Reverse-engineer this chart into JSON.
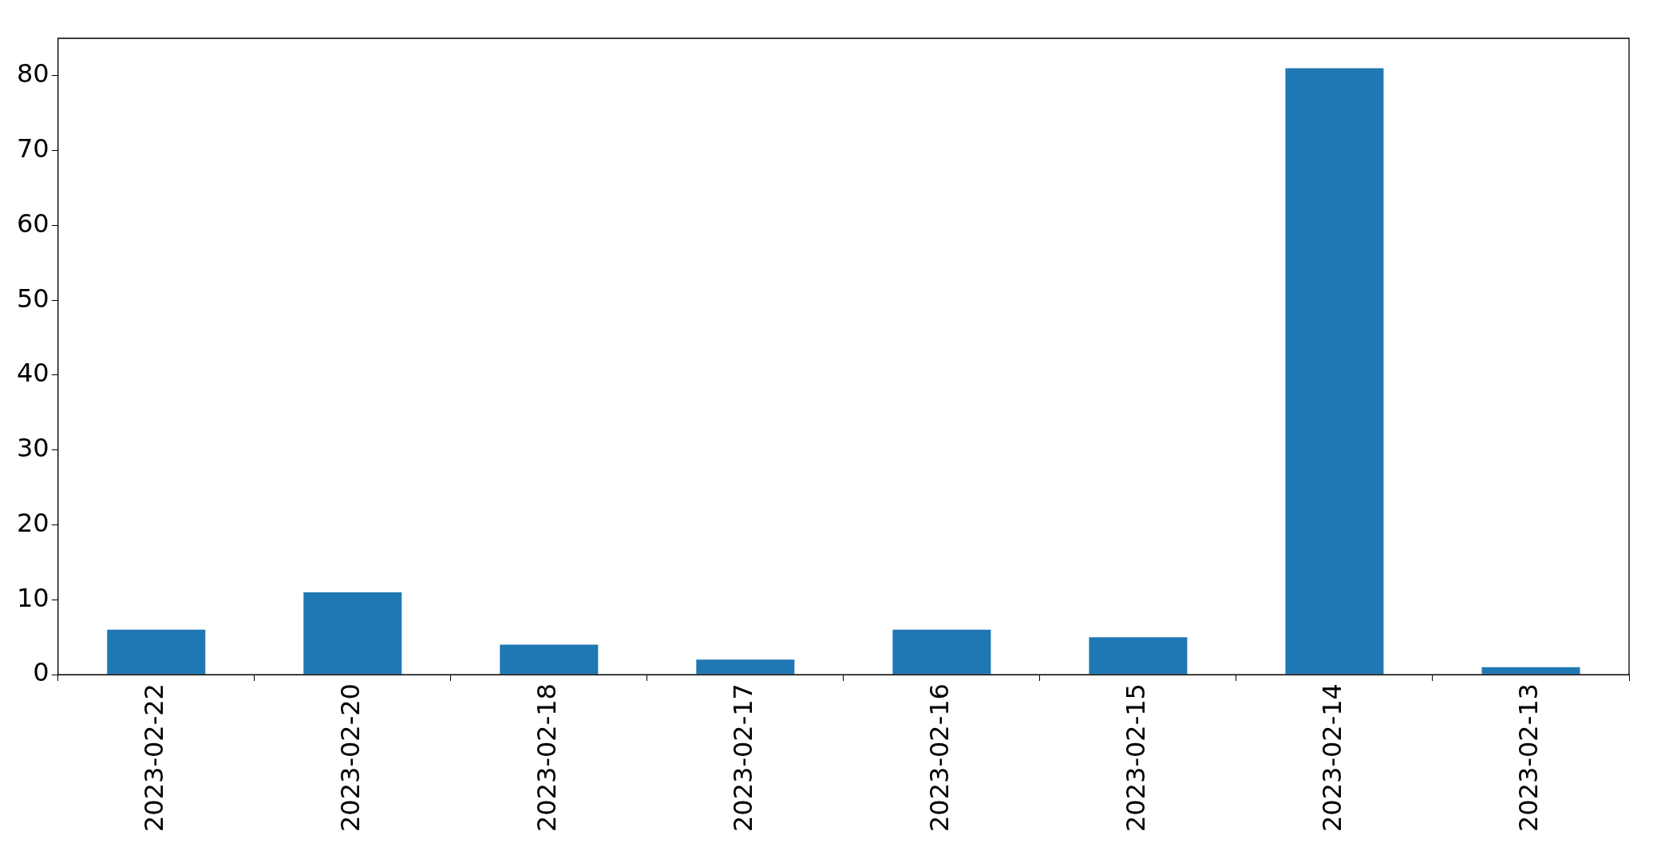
{
  "chart_data": {
    "type": "bar",
    "categories": [
      "2023-02-22",
      "2023-02-20",
      "2023-02-18",
      "2023-02-17",
      "2023-02-16",
      "2023-02-15",
      "2023-02-14",
      "2023-02-13"
    ],
    "values": [
      6,
      11,
      4,
      2,
      6,
      5,
      81,
      1
    ],
    "color": "#1f77b4",
    "ylim": [
      0,
      85
    ],
    "yticks": [
      0,
      10,
      20,
      30,
      40,
      50,
      60,
      70,
      80
    ],
    "grid": false,
    "legend": false
  }
}
